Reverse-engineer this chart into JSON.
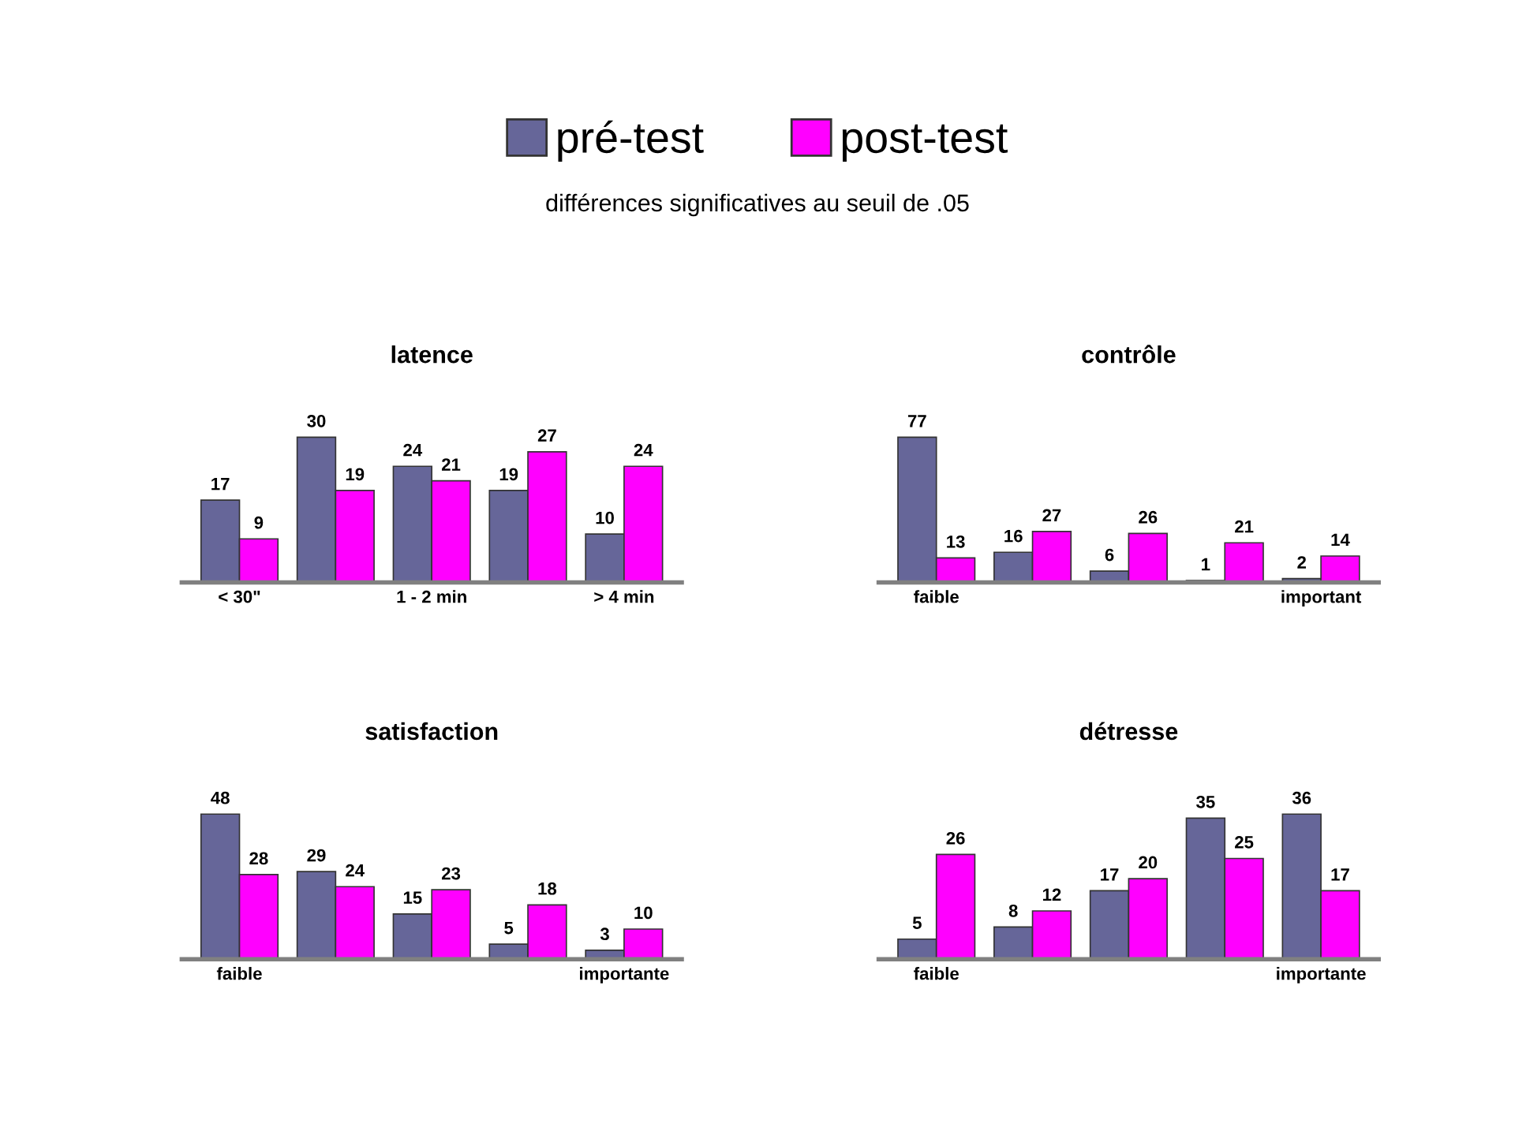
{
  "chart_data": [
    {
      "type": "bar",
      "title": "latence",
      "subtitle": "différences significatives au seuil de .05",
      "categories": [
        "< 30\"",
        null,
        "1 - 2 min",
        null,
        "> 4 min"
      ],
      "legend": "top",
      "data_labels": true,
      "grid": false,
      "series": [
        {
          "name": "pré-test",
          "color": "#666699",
          "values": [
            17,
            30,
            24,
            19,
            10
          ]
        },
        {
          "name": "post-test",
          "color": "#ff00ff",
          "values": [
            9,
            19,
            21,
            27,
            24
          ]
        }
      ]
    },
    {
      "type": "bar",
      "title": "contrôle",
      "categories": [
        "faible",
        null,
        null,
        null,
        "important"
      ],
      "data_labels": true,
      "grid": false,
      "series": [
        {
          "color": "#666699",
          "values": [
            77,
            16,
            6,
            1,
            2
          ]
        },
        {
          "color": "#ff00ff",
          "values": [
            13,
            27,
            26,
            21,
            14
          ]
        }
      ]
    },
    {
      "type": "bar",
      "title": "satisfaction",
      "categories": [
        "faible",
        null,
        null,
        null,
        "importante"
      ],
      "data_labels": true,
      "grid": false,
      "series": [
        {
          "color": "#666699",
          "values": [
            48,
            29,
            15,
            5,
            3
          ]
        },
        {
          "color": "#ff00ff",
          "values": [
            28,
            24,
            23,
            18,
            10
          ]
        }
      ]
    },
    {
      "type": "bar",
      "title": "détresse",
      "categories": [
        "faible",
        null,
        null,
        null,
        "importante"
      ],
      "data_labels": true,
      "grid": false,
      "series": [
        {
          "color": "#666699",
          "values": [
            5,
            8,
            17,
            35,
            36
          ]
        },
        {
          "color": "#ff00ff",
          "values": [
            26,
            12,
            20,
            25,
            17
          ]
        }
      ]
    }
  ]
}
